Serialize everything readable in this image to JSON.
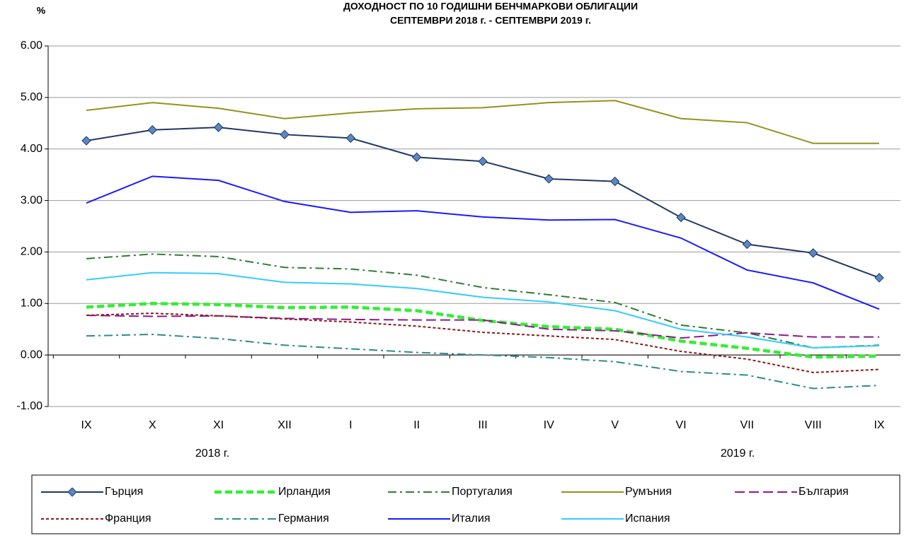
{
  "chart_data": {
    "type": "line",
    "title": "ДОХОДНОСТ ПО 10 ГОДИШНИ БЕНЧМАРКОВИ ОБЛИГАЦИИ",
    "subtitle": "СЕПТЕМВРИ 2018 г. - СЕПТЕМВРИ 2019 г.",
    "y_label": "%",
    "year_labels": [
      "2018 г.",
      "2019 г."
    ],
    "categories": [
      "IX",
      "X",
      "XI",
      "XII",
      "I",
      "II",
      "III",
      "IV",
      "V",
      "VI",
      "VII",
      "VIII",
      "IX"
    ],
    "ylim": [
      -1,
      6
    ],
    "yticks": [
      {
        "value": -1,
        "label": "-1.00"
      },
      {
        "value": 0,
        "label": "0.00"
      },
      {
        "value": 1,
        "label": "1.00"
      },
      {
        "value": 2,
        "label": "2.00"
      },
      {
        "value": 3,
        "label": "3.00"
      },
      {
        "value": 4,
        "label": "4.00"
      },
      {
        "value": 5,
        "label": "5.00"
      },
      {
        "value": 6,
        "label": "6.00"
      }
    ],
    "grid": true,
    "legend": "bottom",
    "series": [
      {
        "name": "Гърция",
        "color": "#1f3864",
        "style": "solid",
        "marker": "diamond",
        "values": [
          4.16,
          4.37,
          4.42,
          4.28,
          4.21,
          3.84,
          3.76,
          3.42,
          3.37,
          2.67,
          2.15,
          1.98,
          1.5
        ]
      },
      {
        "name": "Ирландия",
        "color": "#33ee33",
        "style": "thickdashed",
        "values": [
          0.93,
          1.0,
          0.98,
          0.92,
          0.93,
          0.86,
          0.67,
          0.55,
          0.5,
          0.27,
          0.13,
          -0.04,
          -0.02
        ]
      },
      {
        "name": "Португалия",
        "color": "#2e7d32",
        "style": "dashdot",
        "values": [
          1.87,
          1.96,
          1.91,
          1.7,
          1.67,
          1.55,
          1.31,
          1.17,
          1.02,
          0.58,
          0.43,
          0.14,
          0.19
        ]
      },
      {
        "name": "Румъния",
        "color": "#9a8f1c",
        "style": "solid",
        "values": [
          4.75,
          4.9,
          4.79,
          4.59,
          4.7,
          4.78,
          4.8,
          4.9,
          4.94,
          4.59,
          4.51,
          4.11,
          4.11
        ]
      },
      {
        "name": "България",
        "color": "#8b1a8b",
        "style": "dashed",
        "values": [
          0.77,
          0.75,
          0.76,
          0.71,
          0.69,
          0.68,
          0.68,
          0.5,
          0.47,
          0.33,
          0.43,
          0.35,
          0.35
        ]
      },
      {
        "name": "Франция",
        "color": "#8b1a1a",
        "style": "dotted",
        "values": [
          0.77,
          0.81,
          0.76,
          0.7,
          0.64,
          0.56,
          0.44,
          0.37,
          0.3,
          0.07,
          -0.08,
          -0.34,
          -0.28
        ]
      },
      {
        "name": "Германия",
        "color": "#2e8b8b",
        "style": "dashdot",
        "values": [
          0.37,
          0.4,
          0.32,
          0.19,
          0.12,
          0.05,
          0.0,
          -0.05,
          -0.13,
          -0.32,
          -0.39,
          -0.65,
          -0.59
        ]
      },
      {
        "name": "Италия",
        "color": "#1a1aff",
        "style": "solid",
        "values": [
          2.95,
          3.47,
          3.39,
          2.98,
          2.77,
          2.8,
          2.68,
          2.62,
          2.63,
          2.27,
          1.65,
          1.4,
          0.89
        ]
      },
      {
        "name": "Испания",
        "color": "#33ccff",
        "style": "solid",
        "values": [
          1.46,
          1.6,
          1.58,
          1.41,
          1.38,
          1.29,
          1.12,
          1.03,
          0.86,
          0.5,
          0.35,
          0.14,
          0.18
        ]
      }
    ]
  }
}
